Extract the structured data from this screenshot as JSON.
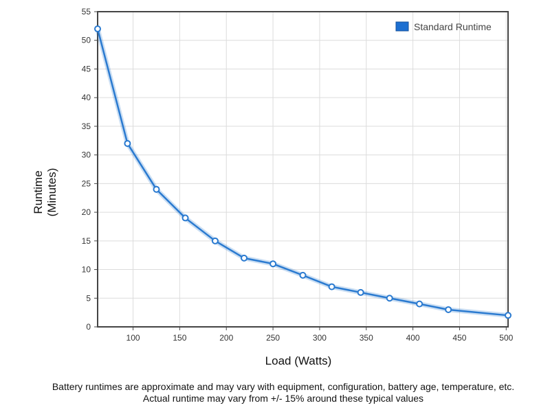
{
  "chart_data": {
    "type": "line",
    "title": "",
    "xlabel": "Load (Watts)",
    "ylabel_lines": [
      "Runtime",
      "(Minutes)"
    ],
    "xlim": [
      62,
      502
    ],
    "ylim": [
      0,
      55
    ],
    "x_ticks": [
      100,
      150,
      200,
      250,
      300,
      350,
      400,
      450,
      500
    ],
    "y_ticks": [
      0,
      5,
      10,
      15,
      20,
      25,
      30,
      35,
      40,
      45,
      50,
      55
    ],
    "grid": true,
    "legend_position": "top-right",
    "series": [
      {
        "name": "Standard Runtime",
        "color": "#2a7ad0",
        "x": [
          62,
          94,
          125,
          156,
          188,
          219,
          250,
          282,
          313,
          344,
          375,
          407,
          438,
          502
        ],
        "y": [
          52,
          32,
          24,
          19,
          15,
          12,
          11,
          9,
          7,
          6,
          5,
          4,
          3,
          2
        ]
      }
    ]
  },
  "notes": [
    "Battery runtimes are approximate and may vary with equipment, configuration, battery age, temperature, etc.",
    "Actual runtime may vary from +/- 15% around these typical values"
  ]
}
